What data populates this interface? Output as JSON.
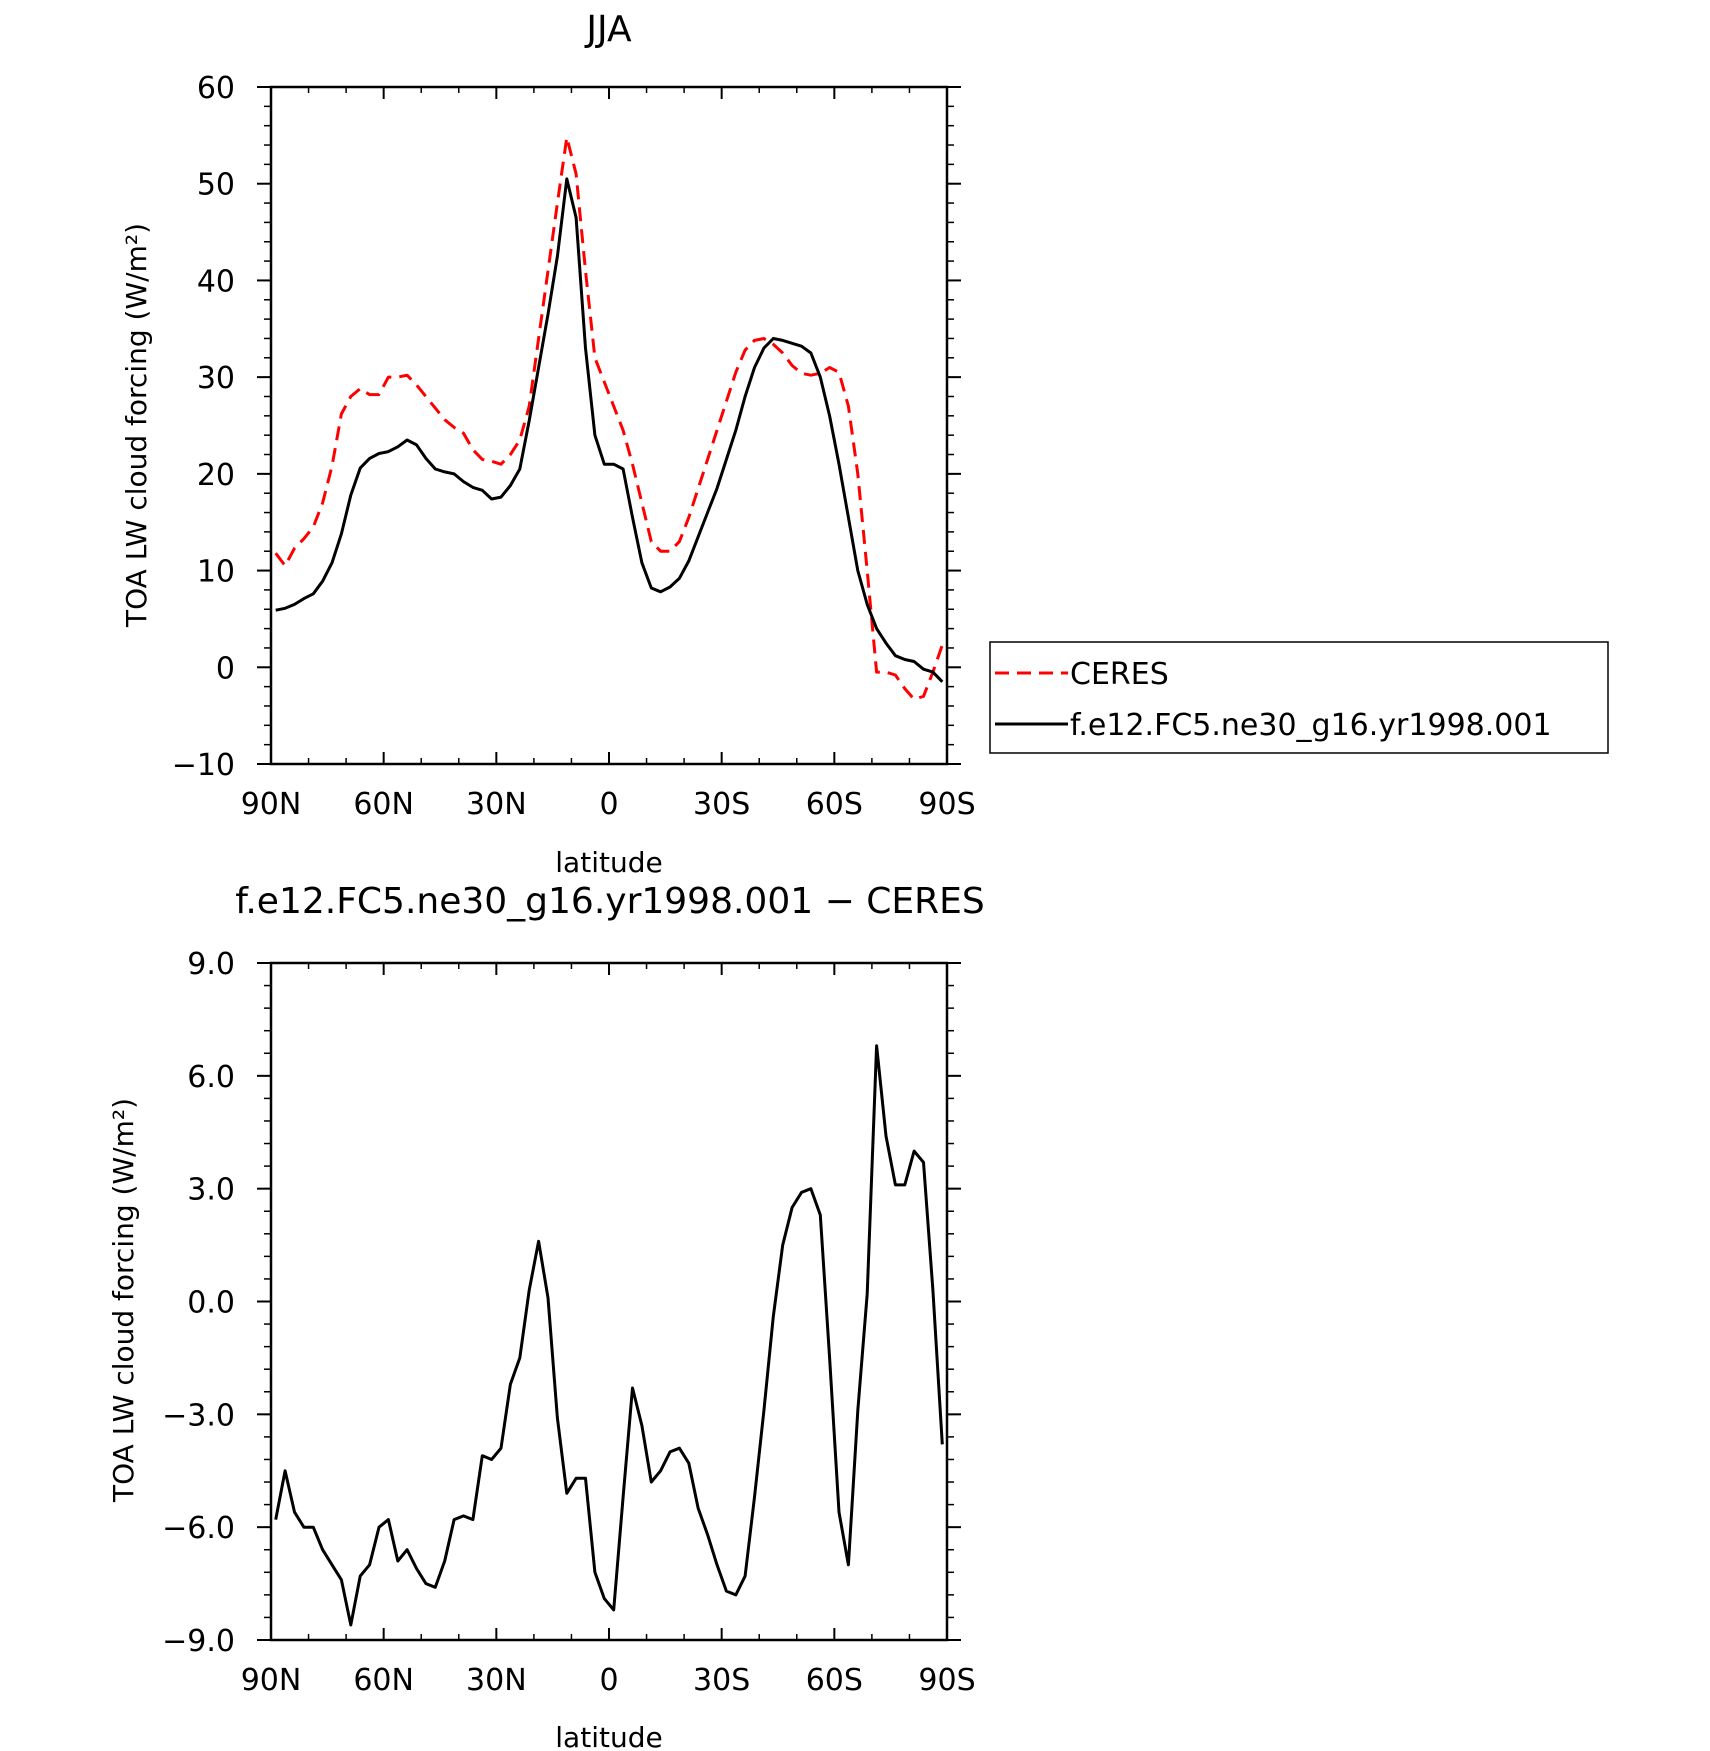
{
  "chart_data": [
    {
      "type": "line",
      "title": "JJA",
      "xlabel": "latitude",
      "ylabel": "TOA LW cloud forcing (W/m²)",
      "xlim": [
        90,
        -90
      ],
      "ylim": [
        -10,
        60
      ],
      "xticks": [
        {
          "value": 90,
          "label": "90N"
        },
        {
          "value": 60,
          "label": "60N"
        },
        {
          "value": 30,
          "label": "30N"
        },
        {
          "value": 0,
          "label": "0"
        },
        {
          "value": -30,
          "label": "30S"
        },
        {
          "value": -60,
          "label": "60S"
        },
        {
          "value": -90,
          "label": "90S"
        }
      ],
      "yticks": [
        {
          "value": 60,
          "label": "60"
        },
        {
          "value": 50,
          "label": "50"
        },
        {
          "value": 40,
          "label": "40"
        },
        {
          "value": 30,
          "label": "30"
        },
        {
          "value": 20,
          "label": "20"
        },
        {
          "value": 10,
          "label": "10"
        },
        {
          "value": 0,
          "label": "0"
        },
        {
          "value": -10,
          "label": "−10"
        }
      ],
      "legend": {
        "placement": "right, outside plot"
      },
      "series": [
        {
          "name": "CERES",
          "color": "#ff0000",
          "dash": "dashed",
          "x": [
            88.75,
            86.25,
            83.75,
            81.25,
            78.75,
            76.25,
            73.75,
            71.25,
            68.75,
            66.25,
            63.75,
            61.25,
            58.75,
            56.25,
            53.75,
            51.25,
            48.75,
            46.25,
            43.75,
            41.25,
            38.75,
            36.25,
            33.75,
            31.25,
            28.75,
            26.25,
            23.75,
            21.25,
            18.75,
            16.25,
            13.75,
            11.25,
            8.75,
            6.25,
            3.75,
            1.25,
            -1.25,
            -3.75,
            -6.25,
            -8.75,
            -11.25,
            -13.75,
            -16.25,
            -18.75,
            -21.25,
            -23.75,
            -26.25,
            -28.75,
            -31.25,
            -33.75,
            -36.25,
            -38.75,
            -41.25,
            -43.75,
            -46.25,
            -48.75,
            -51.25,
            -53.75,
            -56.25,
            -58.75,
            -61.25,
            -63.75,
            -66.25,
            -68.75,
            -71.25,
            -73.75,
            -76.25,
            -78.75,
            -81.25,
            -83.75,
            -86.25,
            -88.75
          ],
          "y": [
            11.8,
            10.5,
            12.3,
            13.3,
            14.5,
            17.0,
            20.8,
            26.2,
            28.0,
            28.8,
            28.2,
            28.2,
            30.0,
            30.0,
            30.2,
            29.2,
            28.0,
            26.8,
            25.6,
            24.8,
            24.2,
            22.5,
            21.5,
            21.3,
            21.0,
            22.0,
            23.5,
            27.0,
            34.0,
            41.0,
            48.0,
            54.8,
            51.0,
            41.0,
            32.0,
            29.5,
            27.0,
            24.5,
            21.0,
            17.0,
            13.0,
            12.0,
            12.0,
            13.0,
            15.5,
            18.5,
            21.5,
            24.5,
            27.5,
            30.5,
            32.8,
            33.8,
            34.0,
            33.4,
            32.5,
            31.2,
            30.4,
            30.2,
            30.4,
            31.0,
            30.5,
            27.0,
            20.0,
            10.0,
            -0.5,
            -0.5,
            -0.8,
            -2.2,
            -3.3,
            -3.0,
            -0.5,
            2.3
          ]
        },
        {
          "name": "f.e12.FC5.ne30_g16.yr1998.001",
          "color": "#000000",
          "dash": "solid",
          "x": [
            88.75,
            86.25,
            83.75,
            81.25,
            78.75,
            76.25,
            73.75,
            71.25,
            68.75,
            66.25,
            63.75,
            61.25,
            58.75,
            56.25,
            53.75,
            51.25,
            48.75,
            46.25,
            43.75,
            41.25,
            38.75,
            36.25,
            33.75,
            31.25,
            28.75,
            26.25,
            23.75,
            21.25,
            18.75,
            16.25,
            13.75,
            11.25,
            8.75,
            6.25,
            3.75,
            1.25,
            -1.25,
            -3.75,
            -6.25,
            -8.75,
            -11.25,
            -13.75,
            -16.25,
            -18.75,
            -21.25,
            -23.75,
            -26.25,
            -28.75,
            -31.25,
            -33.75,
            -36.25,
            -38.75,
            -41.25,
            -43.75,
            -46.25,
            -48.75,
            -51.25,
            -53.75,
            -56.25,
            -58.75,
            -61.25,
            -63.75,
            -66.25,
            -68.75,
            -71.25,
            -73.75,
            -76.25,
            -78.75,
            -81.25,
            -83.75,
            -86.25,
            -88.75
          ],
          "y": [
            5.9,
            6.1,
            6.5,
            7.1,
            7.6,
            8.9,
            10.8,
            13.8,
            17.8,
            20.6,
            21.6,
            22.1,
            22.3,
            22.8,
            23.5,
            23.0,
            21.6,
            20.5,
            20.2,
            20.0,
            19.2,
            18.6,
            18.3,
            17.4,
            17.6,
            18.8,
            20.5,
            25.5,
            31.0,
            36.5,
            42.5,
            50.5,
            46.5,
            33.0,
            24.0,
            21.0,
            21.0,
            20.5,
            15.5,
            10.8,
            8.2,
            7.8,
            8.3,
            9.2,
            11.0,
            13.5,
            16.0,
            18.5,
            21.5,
            24.5,
            28.0,
            31.0,
            33.0,
            34.0,
            33.8,
            33.5,
            33.2,
            32.5,
            30.0,
            26.0,
            21.0,
            15.5,
            10.0,
            6.5,
            4.0,
            2.5,
            1.2,
            0.8,
            0.6,
            -0.2,
            -0.5,
            -1.5
          ]
        }
      ]
    },
    {
      "type": "line",
      "title": "f.e12.FC5.ne30_g16.yr1998.001 − CERES",
      "xlabel": "latitude",
      "ylabel": "TOA LW cloud forcing (W/m²)",
      "xlim": [
        90,
        -90
      ],
      "ylim": [
        -9.0,
        9.0
      ],
      "xticks": [
        {
          "value": 90,
          "label": "90N"
        },
        {
          "value": 60,
          "label": "60N"
        },
        {
          "value": 30,
          "label": "30N"
        },
        {
          "value": 0,
          "label": "0"
        },
        {
          "value": -30,
          "label": "30S"
        },
        {
          "value": -60,
          "label": "60S"
        },
        {
          "value": -90,
          "label": "90S"
        }
      ],
      "yticks": [
        {
          "value": 9,
          "label": "9.0"
        },
        {
          "value": 6,
          "label": "6.0"
        },
        {
          "value": 3,
          "label": "3.0"
        },
        {
          "value": 0,
          "label": "0.0"
        },
        {
          "value": -3,
          "label": "−3.0"
        },
        {
          "value": -6,
          "label": "−6.0"
        },
        {
          "value": -9,
          "label": "−9.0"
        }
      ],
      "series": [
        {
          "color": "#000000",
          "dash": "solid",
          "x": [
            88.75,
            86.25,
            83.75,
            81.25,
            78.75,
            76.25,
            73.75,
            71.25,
            68.75,
            66.25,
            63.75,
            61.25,
            58.75,
            56.25,
            53.75,
            51.25,
            48.75,
            46.25,
            43.75,
            41.25,
            38.75,
            36.25,
            33.75,
            31.25,
            28.75,
            26.25,
            23.75,
            21.25,
            18.75,
            16.25,
            13.75,
            11.25,
            8.75,
            6.25,
            3.75,
            1.25,
            -1.25,
            -3.75,
            -6.25,
            -8.75,
            -11.25,
            -13.75,
            -16.25,
            -18.75,
            -21.25,
            -23.75,
            -26.25,
            -28.75,
            -31.25,
            -33.75,
            -36.25,
            -38.75,
            -41.25,
            -43.75,
            -46.25,
            -48.75,
            -51.25,
            -53.75,
            -56.25,
            -58.75,
            -61.25,
            -63.75,
            -66.25,
            -68.75,
            -71.25,
            -73.75,
            -76.25,
            -78.75,
            -81.25,
            -83.75,
            -86.25,
            -88.75
          ],
          "y": [
            -5.8,
            -4.5,
            -5.6,
            -6.0,
            -6.0,
            -6.6,
            -7.0,
            -7.4,
            -8.6,
            -7.3,
            -7.0,
            -6.0,
            -5.8,
            -6.9,
            -6.6,
            -7.1,
            -7.5,
            -7.6,
            -6.9,
            -5.8,
            -5.7,
            -5.8,
            -4.1,
            -4.2,
            -3.9,
            -2.2,
            -1.5,
            0.3,
            1.6,
            0.1,
            -3.1,
            -5.1,
            -4.7,
            -4.7,
            -7.2,
            -7.9,
            -8.2,
            -5.2,
            -2.3,
            -3.3,
            -4.8,
            -4.5,
            -4.0,
            -3.9,
            -4.3,
            -5.5,
            -6.2,
            -7.0,
            -7.7,
            -7.8,
            -7.3,
            -5.2,
            -2.9,
            -0.4,
            1.5,
            2.5,
            2.9,
            3.0,
            2.3,
            -1.5,
            -5.6,
            -7.0,
            -2.9,
            0.2,
            6.8,
            4.4,
            3.1,
            3.1,
            4.0,
            3.7,
            0.3,
            -3.8
          ]
        }
      ]
    }
  ]
}
